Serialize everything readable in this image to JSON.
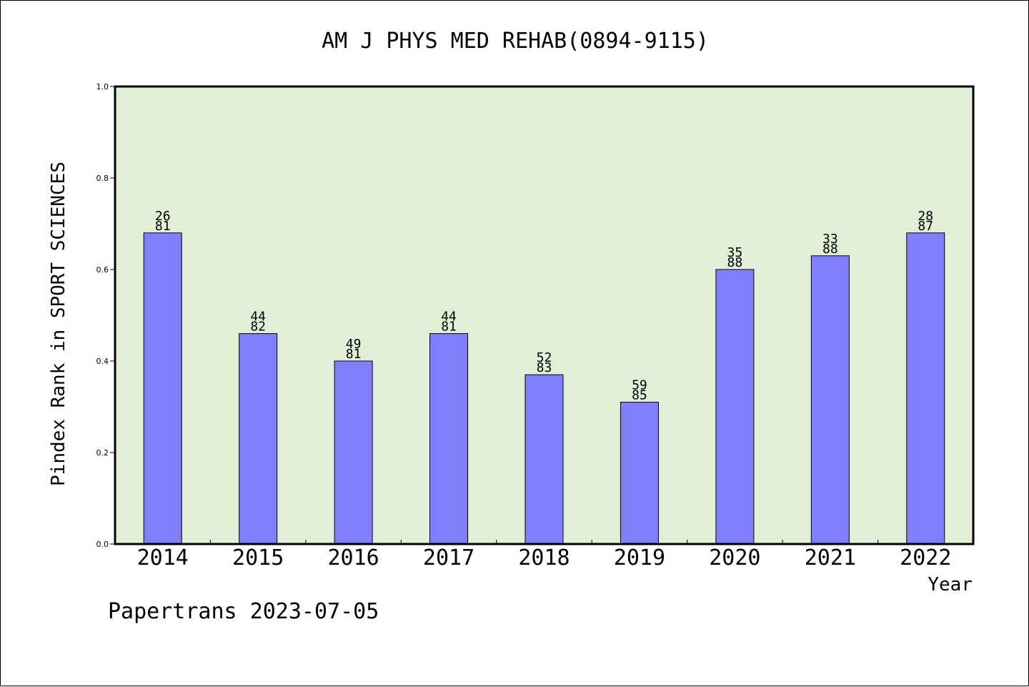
{
  "colors": {
    "plot_background": "#e2efd7",
    "bar_fill": "#8080ff",
    "bar_stroke": "#000000",
    "axis": "#000000",
    "text": "#000000"
  },
  "footer_text": "Papertrans 2023-07-05",
  "chart_data": {
    "type": "bar",
    "title": "AM J PHYS MED REHAB(0894-9115)",
    "xlabel": "Year",
    "ylabel": "Pindex Rank in SPORT SCIENCES",
    "ylim": [
      0,
      1.0
    ],
    "yticks": [
      "0.0",
      "0.2",
      "0.4",
      "0.6",
      "0.8",
      "1.0"
    ],
    "grid": false,
    "categories": [
      "2014",
      "2015",
      "2016",
      "2017",
      "2018",
      "2019",
      "2020",
      "2021",
      "2022"
    ],
    "values": [
      0.68,
      0.46,
      0.4,
      0.46,
      0.37,
      0.31,
      0.6,
      0.63,
      0.68
    ],
    "data_labels": [
      [
        "26",
        "81"
      ],
      [
        "44",
        "82"
      ],
      [
        "49",
        "81"
      ],
      [
        "44",
        "81"
      ],
      [
        "52",
        "83"
      ],
      [
        "59",
        "85"
      ],
      [
        "35",
        "88"
      ],
      [
        "33",
        "88"
      ],
      [
        "28",
        "87"
      ]
    ]
  }
}
